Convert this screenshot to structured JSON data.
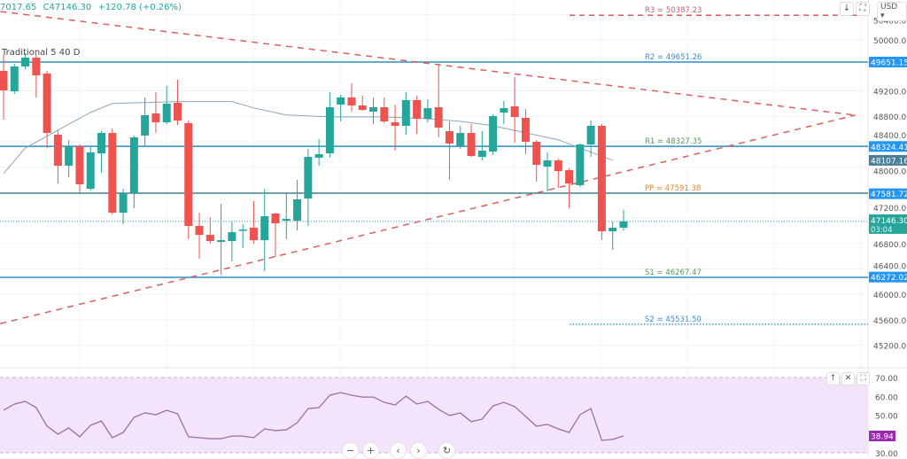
{
  "legend": {
    "low_partial": "7017.65",
    "close": "C47146.30",
    "change": "+120.78 (+0.26%)"
  },
  "indicator_label": "Traditional 5 40 D",
  "toolbar": {
    "currency": "USD ▾",
    "scroll_down_icon": "↓",
    "fullscreen_icon": "⛶"
  },
  "rsi_pane_buttons": {
    "move_up": "↑",
    "close": "✕",
    "maximize": "⛶"
  },
  "nav_buttons": {
    "zoom_out": "−",
    "zoom_in": "+",
    "scroll_left": "‹",
    "scroll_right": "›",
    "reset": "↻"
  },
  "colors": {
    "up": "#26a69a",
    "down": "#ef5350",
    "ma": "#8aa7b8",
    "trendline": "#d9605e",
    "pivot_line": "#2f8dc4",
    "rsi": "#9c6fa6",
    "rsi_fill": "#f3e4fc",
    "rsi_label": "#9c27b0"
  },
  "chart_data": [
    {
      "type": "candlestick",
      "y_ticks": [
        50400,
        50000,
        49200,
        48800,
        48400,
        48000,
        47200,
        46800,
        46400,
        46000,
        45600,
        45200
      ],
      "y_tick_labels": [
        "50400.00",
        "50000.00",
        "49200.00",
        "48800.00",
        "48400.00",
        "48000.00",
        "47200.00",
        "46800.00",
        "46400.00",
        "46000.00",
        "45600.00",
        "45200.00"
      ],
      "ylim": [
        45000,
        50600
      ],
      "candles_ohlc": [
        [
          49512,
          49763,
          48746,
          49206
        ],
        [
          49192,
          49624,
          49150,
          49582
        ],
        [
          49582,
          49790,
          49540,
          49721
        ],
        [
          49721,
          49763,
          49095,
          49443
        ],
        [
          49471,
          49512,
          48301,
          48537
        ],
        [
          48510,
          48579,
          47743,
          48022
        ],
        [
          48022,
          48426,
          47841,
          48328
        ],
        [
          48328,
          48356,
          47590,
          47729
        ],
        [
          47660,
          48328,
          47632,
          48231
        ],
        [
          48217,
          48565,
          47911,
          48537
        ],
        [
          48537,
          48607,
          47256,
          47284
        ],
        [
          47284,
          47660,
          47103,
          47590
        ],
        [
          47590,
          48496,
          47353,
          48468
        ],
        [
          48496,
          49095,
          48328,
          48816
        ],
        [
          48844,
          49178,
          48537,
          48704
        ],
        [
          48704,
          49276,
          48677,
          48997
        ],
        [
          49011,
          49373,
          48663,
          48732
        ],
        [
          48691,
          48732,
          46866,
          47075
        ],
        [
          47075,
          47284,
          46559,
          46935
        ],
        [
          46935,
          47214,
          46796,
          46838
        ],
        [
          46824,
          47423,
          46309,
          46852
        ],
        [
          46838,
          47144,
          46518,
          46977
        ],
        [
          47005,
          47103,
          46726,
          47019
        ],
        [
          47047,
          47465,
          46796,
          46852
        ],
        [
          46852,
          47660,
          46364,
          47228
        ],
        [
          47270,
          47284,
          46587,
          47116
        ],
        [
          47158,
          47590,
          46866,
          47186
        ],
        [
          47158,
          47799,
          47005,
          47493
        ],
        [
          47507,
          48287,
          47075,
          48161
        ],
        [
          48147,
          48440,
          48022,
          48203
        ],
        [
          48217,
          49178,
          48147,
          48941
        ],
        [
          48983,
          49136,
          48718,
          49095
        ],
        [
          49095,
          49317,
          48872,
          48969
        ],
        [
          48969,
          49122,
          48886,
          48900
        ],
        [
          48872,
          49095,
          48677,
          48941
        ],
        [
          48941,
          49095,
          48691,
          48718
        ],
        [
          48704,
          48983,
          48259,
          48649
        ],
        [
          48649,
          49178,
          48510,
          49053
        ],
        [
          49053,
          49122,
          48523,
          48760
        ],
        [
          48760,
          49067,
          48704,
          48927
        ],
        [
          48941,
          49624,
          48468,
          48621
        ],
        [
          48565,
          48718,
          47799,
          48370
        ],
        [
          48328,
          48649,
          48287,
          48537
        ],
        [
          48537,
          48677,
          48161,
          48175
        ],
        [
          48161,
          48565,
          48106,
          48259
        ],
        [
          48245,
          48830,
          48189,
          48802
        ],
        [
          48858,
          49039,
          48677,
          48927
        ],
        [
          48955,
          49415,
          48384,
          48788
        ],
        [
          48774,
          48913,
          48203,
          48398
        ],
        [
          48398,
          48426,
          47771,
          48036
        ],
        [
          48008,
          48231,
          47618,
          48106
        ],
        [
          48106,
          48133,
          47674,
          47938
        ],
        [
          47952,
          47980,
          47353,
          47743
        ],
        [
          47716,
          48370,
          47688,
          48356
        ],
        [
          48356,
          48732,
          48161,
          48649
        ],
        [
          48649,
          48677,
          46852,
          46991
        ],
        [
          46991,
          47144,
          46699,
          47047
        ],
        [
          47047,
          47330,
          47000,
          47146.3
        ]
      ],
      "moving_average": [
        [
          0,
          47900
        ],
        [
          2,
          48300
        ],
        [
          5,
          48580
        ],
        [
          8,
          48860
        ],
        [
          10,
          49000
        ],
        [
          16,
          49030
        ],
        [
          21,
          49030
        ],
        [
          23,
          48930
        ],
        [
          26,
          48820
        ],
        [
          30,
          48790
        ],
        [
          35,
          48790
        ],
        [
          39,
          48760
        ],
        [
          42,
          48720
        ],
        [
          45,
          48650
        ],
        [
          48,
          48540
        ],
        [
          51,
          48430
        ],
        [
          56,
          48107.16
        ]
      ],
      "trendlines": [
        {
          "style": "dashed",
          "points": [
            [
              -0.3,
              50446
            ],
            [
              78.3,
              48816
            ]
          ]
        },
        {
          "style": "dashed",
          "points": [
            [
              -0.3,
              45540
            ],
            [
              78.3,
              48816
            ]
          ]
        }
      ],
      "pivots": [
        {
          "label": "R3 = 50387.23",
          "value": 50387.23,
          "style": "dashed",
          "color": "#d9605e",
          "label_color": "#c2607a",
          "partial": true
        },
        {
          "label": "R2 = 49651.26",
          "value": 49651.26,
          "style": "solid",
          "color": "#2f8dc4",
          "label_color": "#3b8fc4",
          "partial": false
        },
        {
          "label": "R1 = 48327.35",
          "value": 48327.35,
          "style": "solid",
          "color": "#2f8dc4",
          "label_color": "#5a9a5a",
          "partial": false
        },
        {
          "label": "PP = 47591.38",
          "value": 47591.38,
          "style": "solid",
          "color": "#3f8292",
          "label_color": "#e08a2c",
          "partial": false
        },
        {
          "label": "S1 = 46267.47",
          "value": 46267.47,
          "style": "solid",
          "color": "#2f8dc4",
          "label_color": "#5a9a5a",
          "partial": false
        },
        {
          "label": "S2 = 45531.50",
          "value": 45531.5,
          "style": "dotted",
          "color": "#3ba0cc",
          "label_color": "#3b8fc4",
          "partial": true
        }
      ],
      "axis_price_labels": [
        {
          "text": "49651.15",
          "value": 49651.15,
          "color": "#2196f3"
        },
        {
          "text": "48324.41",
          "value": 48324.41,
          "color": "#2196f3"
        },
        {
          "text": "48107.16",
          "value": 48107.16,
          "color": "#4a7f99"
        },
        {
          "text": "47581.72",
          "value": 47581.72,
          "color": "#2196f3"
        },
        {
          "text": "46272.02",
          "value": 46272.02,
          "color": "#2196f3"
        }
      ],
      "last_price": {
        "text": "47146.30",
        "countdown": "03:04",
        "value": 47146.3,
        "color": "#26a69a"
      }
    },
    {
      "type": "line",
      "ylim": [
        30,
        70
      ],
      "y_tick_labels": [
        "70.00",
        "60.00",
        "50.00",
        "30.00"
      ],
      "y_ticks": [
        70,
        60,
        50,
        30
      ],
      "band": [
        30,
        70
      ],
      "values": [
        52.6,
        55.9,
        57.3,
        54.0,
        44.1,
        39.9,
        43.2,
        38.5,
        44.6,
        46.9,
        38.0,
        40.8,
        48.8,
        51.2,
        50.2,
        52.6,
        50.7,
        38.5,
        38.0,
        37.5,
        37.5,
        38.9,
        38.9,
        38.0,
        42.7,
        41.8,
        42.2,
        46.0,
        53.5,
        54.0,
        60.6,
        62.0,
        60.6,
        59.6,
        59.6,
        56.8,
        55.4,
        60.1,
        55.9,
        57.3,
        53.1,
        49.8,
        51.2,
        46.5,
        47.9,
        54.9,
        56.8,
        54.5,
        49.3,
        44.1,
        45.1,
        42.7,
        40.8,
        50.2,
        53.5,
        36.6,
        37.1,
        38.94
      ],
      "last_label": "38.94"
    }
  ]
}
